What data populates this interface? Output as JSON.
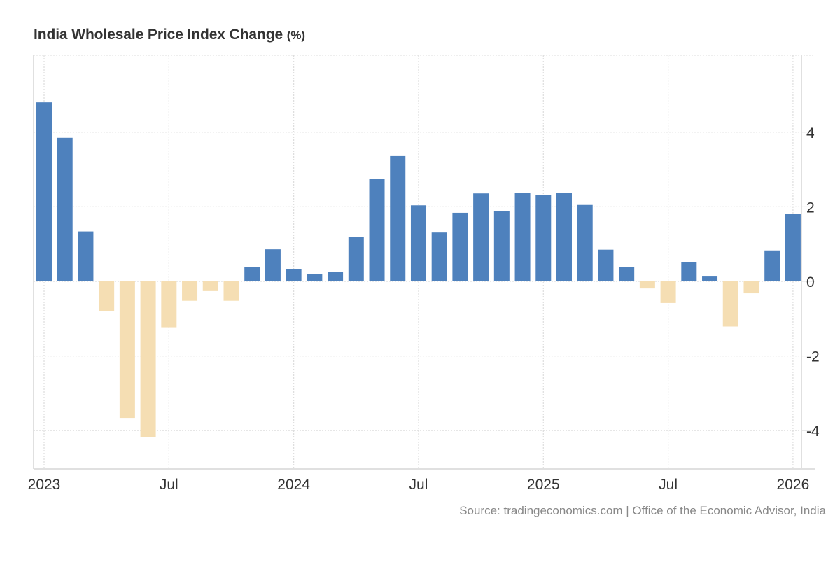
{
  "chart_data": {
    "type": "bar",
    "title": "India Wholesale Price Index Change",
    "title_unit": "(%)",
    "xlabel": "",
    "ylabel": "",
    "ylim": [
      -5,
      6
    ],
    "yticks": [
      -4,
      -2,
      0,
      2,
      4
    ],
    "x_tick_labels": [
      {
        "label": "2023",
        "date": "2023-01"
      },
      {
        "label": "Jul",
        "date": "2023-07"
      },
      {
        "label": "2024",
        "date": "2024-01"
      },
      {
        "label": "Jul",
        "date": "2024-07"
      },
      {
        "label": "2025",
        "date": "2025-01"
      },
      {
        "label": "Jul",
        "date": "2025-07"
      },
      {
        "label": "2026",
        "date": "2026-01"
      }
    ],
    "grid": true,
    "legend": "none",
    "colors": {
      "positive": "#4e81bd",
      "negative": "#f5deb3",
      "grid": "#dddddd",
      "axis": "#e0e0e0"
    },
    "categories": [
      "2023-01",
      "2023-02",
      "2023-03",
      "2023-04",
      "2023-05",
      "2023-06",
      "2023-07",
      "2023-08",
      "2023-09",
      "2023-10",
      "2023-11",
      "2023-12",
      "2024-01",
      "2024-02",
      "2024-03",
      "2024-04",
      "2024-05",
      "2024-06",
      "2024-07",
      "2024-08",
      "2024-09",
      "2024-10",
      "2024-11",
      "2024-12",
      "2025-01",
      "2025-02",
      "2025-03",
      "2025-04",
      "2025-05",
      "2025-06",
      "2025-07",
      "2025-08",
      "2025-09",
      "2025-10",
      "2025-11",
      "2025-12",
      "2026-01"
    ],
    "values": [
      4.8,
      3.85,
      1.34,
      -0.79,
      -3.66,
      -4.18,
      -1.23,
      -0.52,
      -0.26,
      -0.52,
      0.39,
      0.86,
      0.33,
      0.2,
      0.26,
      1.19,
      2.74,
      3.36,
      2.04,
      1.31,
      1.84,
      2.36,
      1.89,
      2.37,
      2.31,
      2.38,
      2.05,
      0.85,
      0.39,
      -0.19,
      -0.58,
      0.52,
      0.13,
      -1.21,
      -0.32,
      0.83,
      1.81
    ]
  },
  "source": "Source: tradingeconomics.com | Office of the Economic Advisor, India"
}
